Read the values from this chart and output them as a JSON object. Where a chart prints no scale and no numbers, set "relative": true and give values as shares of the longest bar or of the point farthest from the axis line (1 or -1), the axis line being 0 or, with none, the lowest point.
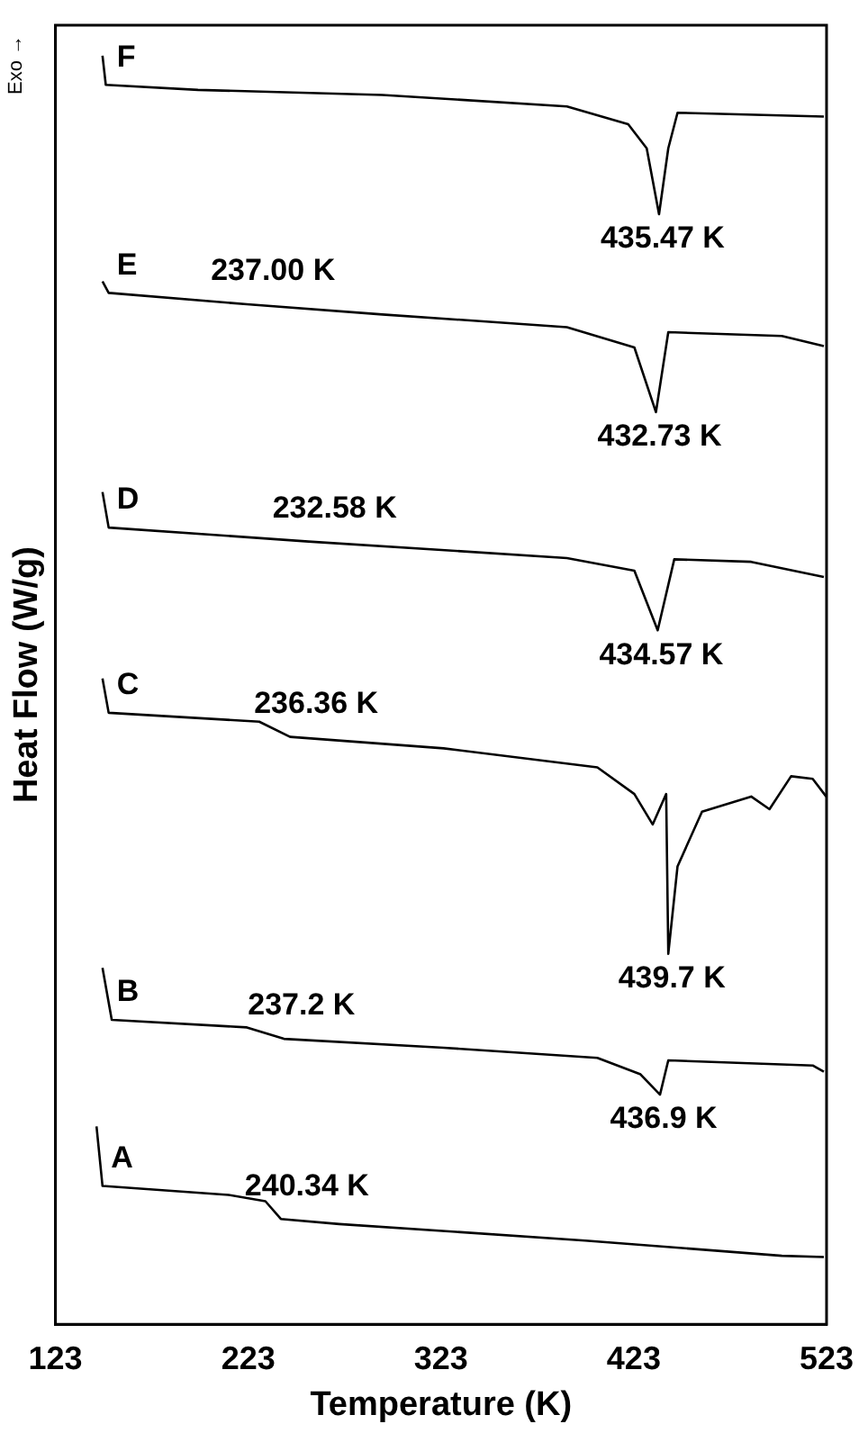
{
  "chart_data": {
    "type": "line",
    "relative": true,
    "xlabel": "Temperature (K)",
    "ylabel": "Heat Flow (W/g)",
    "xlim": [
      123,
      523
    ],
    "xticks": [
      123,
      223,
      323,
      423,
      523
    ],
    "grid": false,
    "legend": false,
    "marker": "none",
    "line_style": "solid",
    "series": [
      {
        "color": "#000000",
        "x": [
          147.4,
          149.1,
          196.9,
          292.6,
          388.3,
          420.1,
          429.7,
          436.1,
          440.9,
          445.7,
          521.6
        ],
        "values": [
          1.0,
          0.977,
          0.973,
          0.969,
          0.96,
          0.946,
          0.927,
          0.875,
          0.927,
          0.955,
          0.952
        ]
      },
      {
        "color": "#000000",
        "x": [
          147.4,
          150.6,
          222.3,
          292.6,
          388.3,
          423.3,
          434.5,
          440.9,
          499.8,
          521.6
        ],
        "values": [
          0.822,
          0.813,
          0.804,
          0.796,
          0.786,
          0.77,
          0.719,
          0.782,
          0.779,
          0.771
        ]
      },
      {
        "color": "#000000",
        "x": [
          147.4,
          150.6,
          254.3,
          388.3,
          423.3,
          435.4,
          444,
          483.9,
          521.6
        ],
        "values": [
          0.656,
          0.628,
          0.617,
          0.604,
          0.594,
          0.547,
          0.603,
          0.601,
          0.589
        ]
      },
      {
        "color": "#000000",
        "x": [
          147.4,
          150.6,
          228.7,
          244.7,
          324.4,
          404.1,
          423.3,
          432.8,
          439.8,
          440.9,
          445.7,
          458.4,
          483.9,
          493.4,
          504.6,
          515.8,
          522.8
        ],
        "values": [
          0.509,
          0.482,
          0.475,
          0.463,
          0.454,
          0.439,
          0.418,
          0.394,
          0.418,
          0.292,
          0.361,
          0.404,
          0.416,
          0.406,
          0.432,
          0.43,
          0.416
        ]
      },
      {
        "color": "#000000",
        "x": [
          147.4,
          152.2,
          222.3,
          241.5,
          324.4,
          404.1,
          426.5,
          436.6,
          440.9,
          515.8,
          521.6
        ],
        "values": [
          0.281,
          0.24,
          0.234,
          0.225,
          0.218,
          0.21,
          0.197,
          0.181,
          0.208,
          0.204,
          0.199
        ]
      },
      {
        "color": "#000000",
        "x": [
          144.3,
          147.4,
          212.8,
          231.9,
          239.9,
          270.2,
          397.8,
          499.8,
          521.6
        ],
        "values": [
          0.156,
          0.109,
          0.102,
          0.097,
          0.083,
          0.079,
          0.066,
          0.054,
          0.053
        ]
      }
    ],
    "annotations": [
      "Exo →",
      "F",
      "E",
      "D",
      "C",
      "B",
      "A",
      {
        "text": "435.47 K",
        "x": 436.1,
        "y": 0.875
      },
      {
        "text": "237.00 K",
        "x": 222.3,
        "y": 0.804
      },
      {
        "text": "432.73 K",
        "x": 434.5,
        "y": 0.719
      },
      {
        "text": "232.58 K",
        "x": 254.3,
        "y": 0.617
      },
      {
        "text": "434.57 K",
        "x": 435.4,
        "y": 0.547
      },
      {
        "text": "236.36 K",
        "x": 244.7,
        "y": 0.463
      },
      {
        "text": "439.7 K",
        "x": 440.9,
        "y": 0.292
      },
      {
        "text": "237.2 K",
        "x": 241.5,
        "y": 0.225
      },
      {
        "text": "436.9 K",
        "x": 436.6,
        "y": 0.181
      },
      {
        "text": "240.34 K",
        "x": 239.9,
        "y": 0.083
      }
    ]
  }
}
